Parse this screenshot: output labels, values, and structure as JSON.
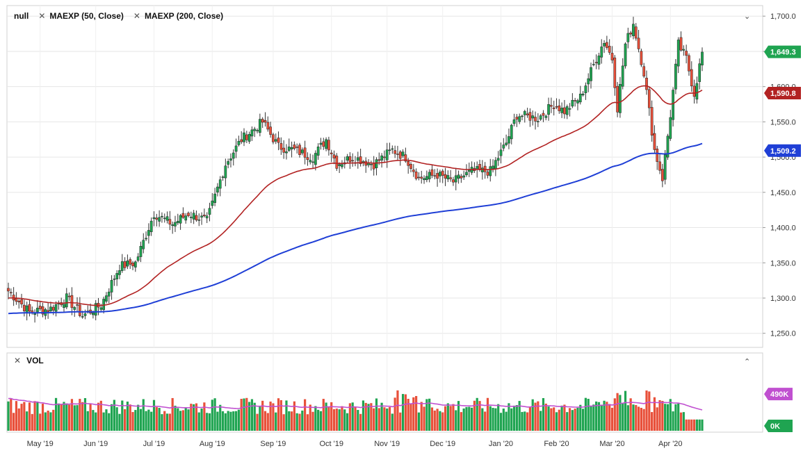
{
  "legend": {
    "symbol": "null",
    "ma1": "MAEXP (50, Close)",
    "ma2": "MAEXP (200, Close)",
    "vol": "VOL"
  },
  "badges": {
    "price": "1,649.3",
    "ma50": "1,590.8",
    "ma200": "1,509.2",
    "vol_avg": "490K",
    "vol_zero": "0K"
  },
  "colors": {
    "up": "#1fa451",
    "down": "#e8503a",
    "ma50": "#b22222",
    "ma200": "#1f3fd6",
    "vol_avg": "#c050d0",
    "price_badge": "#1fa451",
    "grid": "#e6e6e6"
  },
  "chart_data": [
    {
      "type": "candlestick",
      "title": "",
      "x_ticks": [
        "May '19",
        "Jun '19",
        "Jul '19",
        "Aug '19",
        "Sep '19",
        "Oct '19",
        "Nov '19",
        "Dec '19",
        "Jan '20",
        "Feb '20",
        "Mar '20",
        "Apr '20"
      ],
      "y_ticks": [
        "1,250.0",
        "1,300.0",
        "1,350.0",
        "1,400.0",
        "1,450.0",
        "1,500.0",
        "1,550.0",
        "1,600.0",
        "1,650.0",
        "1,700.0"
      ],
      "ylim": [
        1230,
        1715
      ],
      "close_anchors": [
        [
          0,
          1310
        ],
        [
          8,
          1280
        ],
        [
          16,
          1285
        ],
        [
          22,
          1300
        ],
        [
          28,
          1275
        ],
        [
          35,
          1290
        ],
        [
          42,
          1345
        ],
        [
          48,
          1350
        ],
        [
          55,
          1420
        ],
        [
          62,
          1405
        ],
        [
          68,
          1420
        ],
        [
          75,
          1410
        ],
        [
          82,
          1490
        ],
        [
          88,
          1525
        ],
        [
          96,
          1550
        ],
        [
          102,
          1515
        ],
        [
          108,
          1510
        ],
        [
          115,
          1500
        ],
        [
          120,
          1525
        ],
        [
          124,
          1490
        ],
        [
          130,
          1500
        ],
        [
          138,
          1490
        ],
        [
          145,
          1510
        ],
        [
          150,
          1500
        ],
        [
          155,
          1470
        ],
        [
          162,
          1475
        ],
        [
          168,
          1465
        ],
        [
          175,
          1480
        ],
        [
          182,
          1480
        ],
        [
          188,
          1520
        ],
        [
          192,
          1560
        ],
        [
          200,
          1555
        ],
        [
          206,
          1575
        ],
        [
          210,
          1565
        ],
        [
          216,
          1585
        ],
        [
          222,
          1640
        ],
        [
          225,
          1665
        ],
        [
          228,
          1640
        ],
        [
          230,
          1570
        ],
        [
          233,
          1660
        ],
        [
          236,
          1690
        ],
        [
          240,
          1620
        ],
        [
          244,
          1510
        ],
        [
          247,
          1470
        ],
        [
          250,
          1560
        ],
        [
          253,
          1660
        ],
        [
          256,
          1640
        ],
        [
          259,
          1590
        ],
        [
          262,
          1649
        ]
      ],
      "series": [
        {
          "name": "MAEXP (50, Close)",
          "last": 1590.8
        },
        {
          "name": "MAEXP (200, Close)",
          "last": 1509.2
        }
      ]
    },
    {
      "type": "bar",
      "title": "VOL",
      "avg_last": 490,
      "unit": "K",
      "ylim": [
        0,
        1000
      ]
    }
  ]
}
